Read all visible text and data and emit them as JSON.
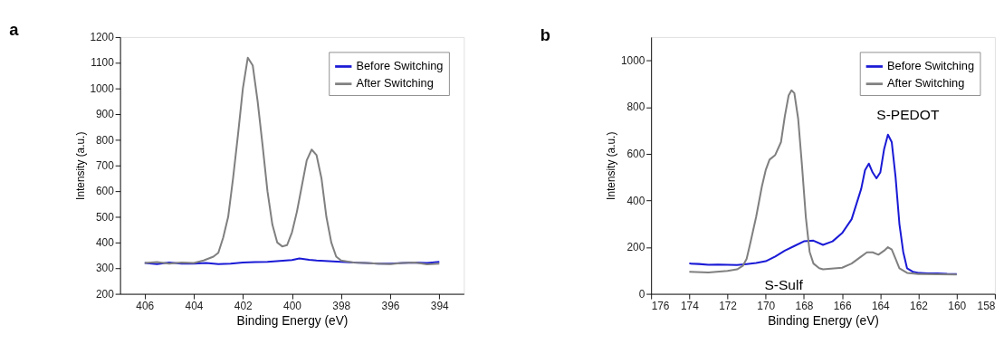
{
  "chart_data": [
    {
      "type": "line",
      "title": "a",
      "xlabel": "Binding Energy (eV)",
      "ylabel": "Intensity (a.u.)",
      "xlim": [
        407,
        393
      ],
      "xticks": [
        406,
        404,
        402,
        400,
        398,
        396,
        394
      ],
      "ylim": [
        200,
        1200
      ],
      "yticks": [
        200,
        300,
        400,
        500,
        600,
        700,
        800,
        900,
        1000,
        1100,
        1200
      ],
      "grid": false,
      "legend": "top right",
      "line_style": "solid",
      "series": [
        {
          "name": "Before Switching",
          "color": "#1a1ad6",
          "x": [
            406,
            405.5,
            405,
            404.5,
            404,
            403.5,
            403,
            402.5,
            402,
            401.5,
            401,
            400.5,
            400,
            399.7,
            399.3,
            399,
            398.5,
            398,
            397.5,
            397,
            396.5,
            396,
            395.5,
            395,
            394.5,
            394
          ],
          "values": [
            320,
            316,
            322,
            318,
            318,
            320,
            316,
            318,
            322,
            324,
            325,
            328,
            332,
            338,
            333,
            330,
            327,
            325,
            322,
            320,
            318,
            318,
            320,
            322,
            320,
            325
          ]
        },
        {
          "name": "After Switching",
          "color": "#808080",
          "x": [
            406,
            405.5,
            405,
            404.5,
            404,
            403.6,
            403.2,
            403,
            402.8,
            402.6,
            402.4,
            402.2,
            402,
            401.8,
            401.6,
            401.4,
            401.2,
            401,
            400.8,
            400.6,
            400.4,
            400.2,
            400,
            399.8,
            399.6,
            399.4,
            399.2,
            399,
            398.8,
            398.6,
            398.4,
            398.2,
            398,
            397.5,
            397,
            396.5,
            396,
            395.5,
            395,
            394.5,
            394
          ],
          "values": [
            320,
            324,
            318,
            322,
            320,
            330,
            345,
            360,
            420,
            500,
            650,
            820,
            1000,
            1120,
            1090,
            950,
            780,
            600,
            470,
            400,
            385,
            390,
            440,
            520,
            620,
            720,
            762,
            740,
            650,
            500,
            400,
            345,
            330,
            322,
            320,
            318,
            316,
            320,
            322,
            315,
            318
          ]
        }
      ]
    },
    {
      "type": "line",
      "title": "b",
      "xlabel": "Binding Energy (eV)",
      "ylabel": "Intensity (a.u.)",
      "xlim": [
        176,
        158
      ],
      "xticks": [
        176,
        174,
        172,
        170,
        168,
        166,
        164,
        162,
        160,
        158
      ],
      "ylim": [
        0,
        1100
      ],
      "yticks": [
        0,
        200,
        400,
        600,
        800,
        1000
      ],
      "grid": false,
      "legend": "top right",
      "line_style": "solid",
      "annotations": [
        "S-PEDOT",
        "S-Sulf"
      ],
      "series": [
        {
          "name": "Before Switching",
          "color": "#1a1ad6",
          "x": [
            174,
            173.5,
            173,
            172.5,
            172,
            171.5,
            171,
            170.5,
            170,
            169.5,
            169,
            168.5,
            168,
            167.5,
            167,
            166.5,
            166,
            165.5,
            165,
            164.8,
            164.6,
            164.4,
            164.2,
            164,
            163.8,
            163.6,
            163.4,
            163.2,
            163,
            162.8,
            162.6,
            162.3,
            162,
            161.5,
            161,
            160.5,
            160
          ],
          "values": [
            130,
            128,
            125,
            126,
            125,
            124,
            128,
            132,
            140,
            160,
            185,
            205,
            225,
            228,
            210,
            225,
            260,
            320,
            450,
            530,
            558,
            520,
            495,
            520,
            620,
            682,
            650,
            500,
            300,
            180,
            110,
            95,
            90,
            88,
            88,
            86,
            85
          ]
        },
        {
          "name": "After Switching",
          "color": "#808080",
          "x": [
            174,
            173,
            172,
            171.5,
            171.2,
            171,
            170.8,
            170.5,
            170.2,
            170,
            169.8,
            169.5,
            169.2,
            169,
            168.8,
            168.65,
            168.5,
            168.3,
            168.1,
            167.9,
            167.7,
            167.5,
            167.2,
            167,
            166,
            165.5,
            165,
            164.7,
            164.4,
            164.1,
            163.8,
            163.6,
            163.4,
            163.2,
            163,
            162.6,
            162,
            161,
            160
          ],
          "values": [
            95,
            92,
            98,
            105,
            120,
            150,
            220,
            330,
            460,
            530,
            575,
            595,
            650,
            760,
            850,
            872,
            860,
            750,
            550,
            330,
            180,
            130,
            110,
            105,
            112,
            130,
            160,
            178,
            178,
            168,
            185,
            200,
            190,
            150,
            110,
            90,
            85,
            84,
            83
          ]
        }
      ]
    }
  ]
}
